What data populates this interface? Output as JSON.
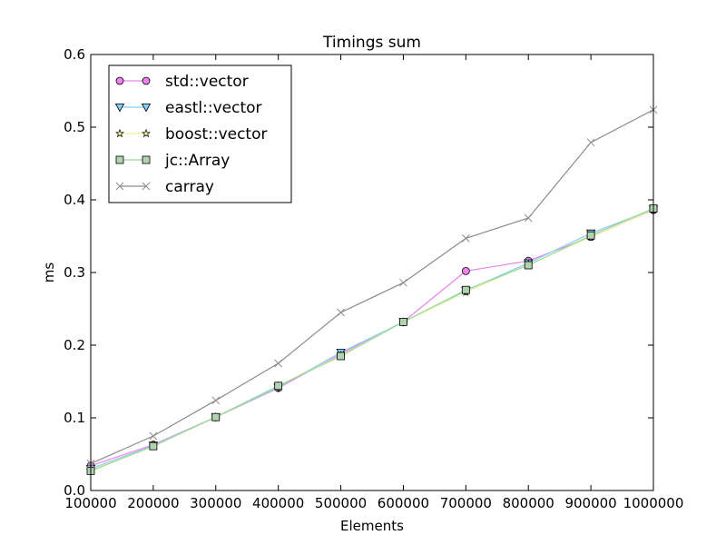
{
  "chart_data": {
    "type": "line",
    "title": "Timings sum",
    "xlabel": "Elements",
    "ylabel": "ms",
    "xlim": [
      100000,
      1000000
    ],
    "ylim": [
      0.0,
      0.6
    ],
    "grid": false,
    "legend_position": "top-left",
    "x": [
      100000,
      200000,
      300000,
      400000,
      500000,
      600000,
      700000,
      800000,
      900000,
      1000000
    ],
    "x_tick_labels": [
      "100000",
      "200000",
      "300000",
      "400000",
      "500000",
      "600000",
      "700000",
      "800000",
      "900000",
      "1000000"
    ],
    "y_ticks": [
      0.0,
      0.1,
      0.2,
      0.3,
      0.4,
      0.5,
      0.6
    ],
    "y_tick_labels": [
      "0.0",
      "0.1",
      "0.2",
      "0.3",
      "0.4",
      "0.5",
      "0.6"
    ],
    "series": [
      {
        "name": "std::vector",
        "color": "#ee82ee",
        "marker": "circle",
        "marker_fill": "#ee82ee",
        "values": [
          0.034,
          0.063,
          0.101,
          0.141,
          0.188,
          0.232,
          0.302,
          0.316,
          0.349,
          0.386
        ]
      },
      {
        "name": "eastl::vector",
        "color": "#87cefa",
        "marker": "triangle-down",
        "marker_fill": "#87cefa",
        "values": [
          0.03,
          0.062,
          0.101,
          0.142,
          0.19,
          0.232,
          0.275,
          0.313,
          0.354,
          0.387
        ]
      },
      {
        "name": "boost::vector",
        "color": "#eeee9e",
        "marker": "star",
        "marker_fill": "#eeee9e",
        "values": [
          0.028,
          0.061,
          0.101,
          0.144,
          0.186,
          0.232,
          0.273,
          0.311,
          0.349,
          0.386
        ]
      },
      {
        "name": "jc::Array",
        "color": "#98d898",
        "marker": "square",
        "marker_fill": "#b0d4b0",
        "values": [
          0.027,
          0.061,
          0.101,
          0.144,
          0.185,
          0.232,
          0.276,
          0.31,
          0.351,
          0.388
        ]
      },
      {
        "name": "carray",
        "color": "#8c8c8c",
        "marker": "x",
        "marker_fill": "#8c8c8c",
        "values": [
          0.037,
          0.075,
          0.124,
          0.175,
          0.245,
          0.286,
          0.347,
          0.375,
          0.479,
          0.524
        ]
      }
    ]
  }
}
